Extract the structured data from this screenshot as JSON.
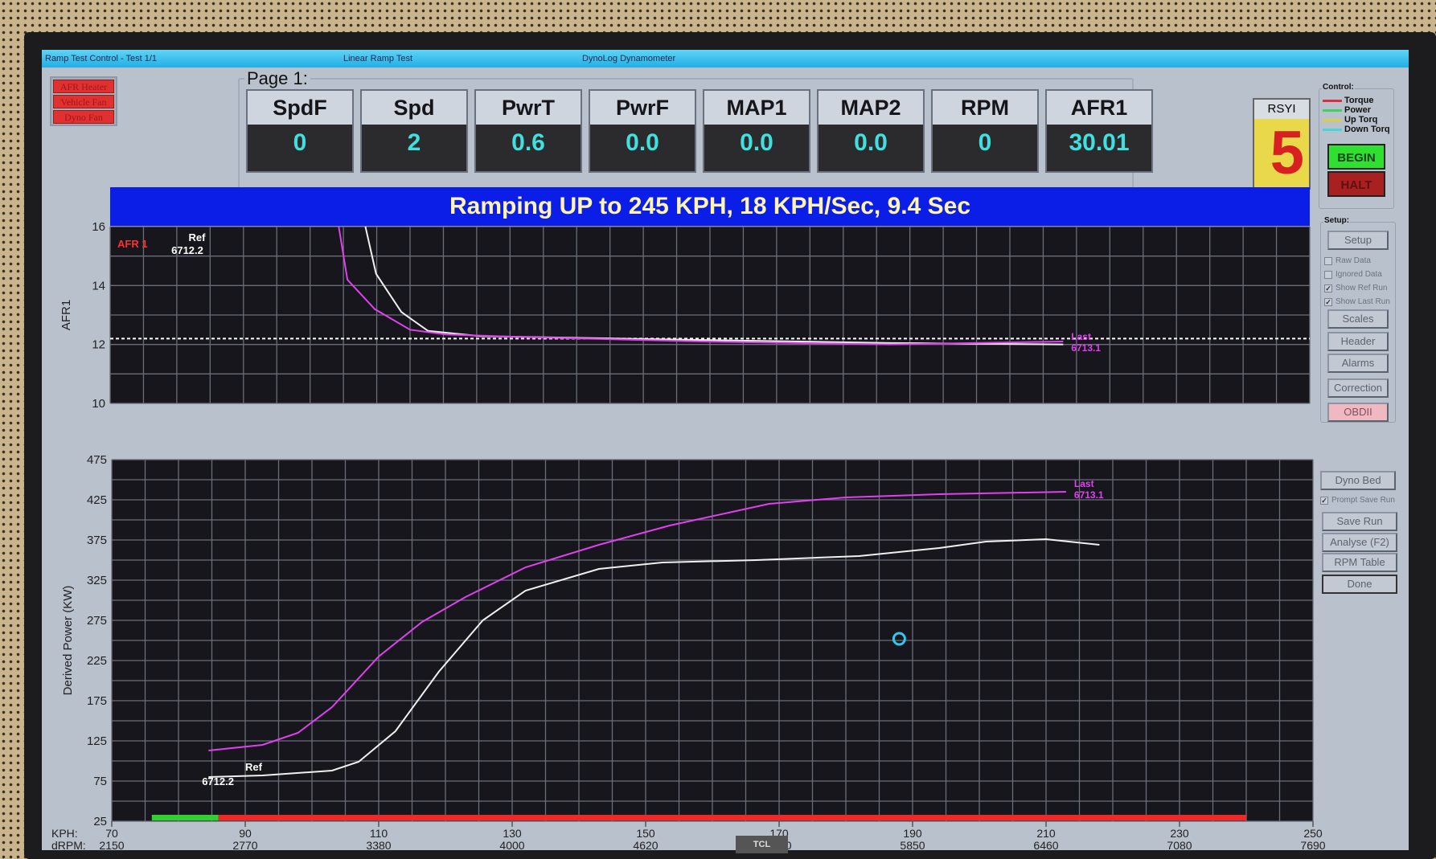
{
  "window": {
    "title_left": "Ramp Test Control - Test 1/1",
    "title_center": "Linear Ramp Test",
    "title_right": "DynoLog Dynamometer"
  },
  "toggles": [
    "AFR Heater",
    "Vehicle Fan",
    "Dyno Fan"
  ],
  "page": {
    "title": "Page 1:",
    "cards": [
      {
        "label": "SpdF",
        "value": "0"
      },
      {
        "label": "Spd",
        "value": "2"
      },
      {
        "label": "PwrT",
        "value": "0.6"
      },
      {
        "label": "PwrF",
        "value": "0.0"
      },
      {
        "label": "MAP1",
        "value": "0.0"
      },
      {
        "label": "MAP2",
        "value": "0.0"
      },
      {
        "label": "RPM",
        "value": "0"
      },
      {
        "label": "AFR1",
        "value": "30.01"
      }
    ]
  },
  "rsyi": {
    "label": "RSYI",
    "value": "5"
  },
  "control": {
    "title": "Control:",
    "legend": [
      {
        "label": "Torque",
        "color": "#d83040"
      },
      {
        "label": "Power",
        "color": "#40d060"
      },
      {
        "label": "Up Torq",
        "color": "#d8d040"
      },
      {
        "label": "Down Torq",
        "color": "#40d8d8"
      }
    ],
    "begin": "BEGIN",
    "halt": "HALT"
  },
  "setup": {
    "title": "Setup:",
    "setup_button": "Setup",
    "checkboxes": [
      {
        "label": "Raw Data",
        "checked": false
      },
      {
        "label": "Ignored Data",
        "checked": false
      },
      {
        "label": "Show Ref Run",
        "checked": true
      },
      {
        "label": "Show Last Run",
        "checked": true
      }
    ],
    "buttons": [
      "Scales",
      "Header",
      "Alarms",
      "Correction",
      "OBDII"
    ]
  },
  "actions": {
    "dyno_bed": "Dyno Bed",
    "prompt_save": {
      "label": "Prompt Save Run",
      "checked": true
    },
    "buttons": [
      "Save Run",
      "Analyse (F2)",
      "RPM Table",
      "Done"
    ]
  },
  "banner": "Ramping UP to 245 KPH, 18 KPH/Sec, 9.4 Sec",
  "x_axis": {
    "kph_label": "KPH:",
    "rpm_label": "dRPM:",
    "kph_ticks": [
      "70",
      "90",
      "110",
      "130",
      "150",
      "170",
      "190",
      "210",
      "230",
      "250"
    ],
    "rpm_ticks": [
      "2150",
      "2770",
      "3380",
      "4000",
      "4620",
      "5230",
      "5850",
      "6460",
      "7080",
      "7690"
    ]
  },
  "chart_data": [
    {
      "type": "line",
      "ylabel": "AFR1",
      "channel_label": "AFR 1",
      "xlim": [
        70,
        250
      ],
      "ylim": [
        10,
        16
      ],
      "yticks": [
        "10",
        "12",
        "14",
        "16"
      ],
      "grid": true,
      "target_line": 12.2,
      "series": [
        {
          "name": "Ref 6712.2",
          "label_top": "Ref",
          "label_bottom": "6712.2",
          "color": "#f0f0f0",
          "x": [
            108.3,
            109.9,
            113.7,
            117.7,
            125.6,
            159,
            187,
            213
          ],
          "y": [
            16,
            14.4,
            13.1,
            12.46,
            12.28,
            12.15,
            12.05,
            12.0
          ]
        },
        {
          "name": "Last 6713.1",
          "label_top": "Last",
          "label_bottom": "6713.1",
          "color": "#e040f0",
          "x": [
            104.3,
            105.6,
            109.7,
            115,
            120.4,
            132,
            159,
            187,
            213
          ],
          "y": [
            16,
            14.2,
            13.2,
            12.5,
            12.34,
            12.25,
            12.1,
            12.0,
            12.1
          ]
        }
      ]
    },
    {
      "type": "line",
      "ylabel": "Derived Power (KW)",
      "xlim": [
        70,
        250
      ],
      "ylim": [
        25,
        475
      ],
      "yticks": [
        "25",
        "75",
        "125",
        "175",
        "225",
        "275",
        "325",
        "375",
        "425",
        "475"
      ],
      "grid": true,
      "ramp_progress": {
        "green_kph": [
          76,
          86
        ],
        "red_kph": [
          86,
          240
        ]
      },
      "cursor": {
        "kph": 188,
        "kw": 252,
        "color": "#30c8f0"
      },
      "series": [
        {
          "name": "Ref 6712.2",
          "label_top": "Ref",
          "label_bottom": "6712.2",
          "color": "#f0f0f0",
          "x": [
            84.5,
            92.6,
            103,
            107,
            112.5,
            119,
            125.6,
            132,
            143,
            152.5,
            166.6,
            182,
            194,
            201,
            210,
            218
          ],
          "y": [
            80,
            82,
            88,
            99,
            137,
            211,
            275,
            312,
            339,
            347,
            350,
            355,
            365,
            373,
            376,
            369
          ]
        },
        {
          "name": "Last 6713.1",
          "label_top": "Last",
          "label_bottom": "6713.1",
          "color": "#e040f0",
          "x": [
            84.5,
            92.6,
            97.9,
            103,
            110,
            116.5,
            123,
            132,
            143,
            153.6,
            168.5,
            180,
            194,
            213
          ],
          "y": [
            113,
            120,
            135,
            167,
            230,
            273,
            304,
            341,
            369,
            393,
            420,
            428,
            432,
            435
          ]
        }
      ]
    }
  ]
}
